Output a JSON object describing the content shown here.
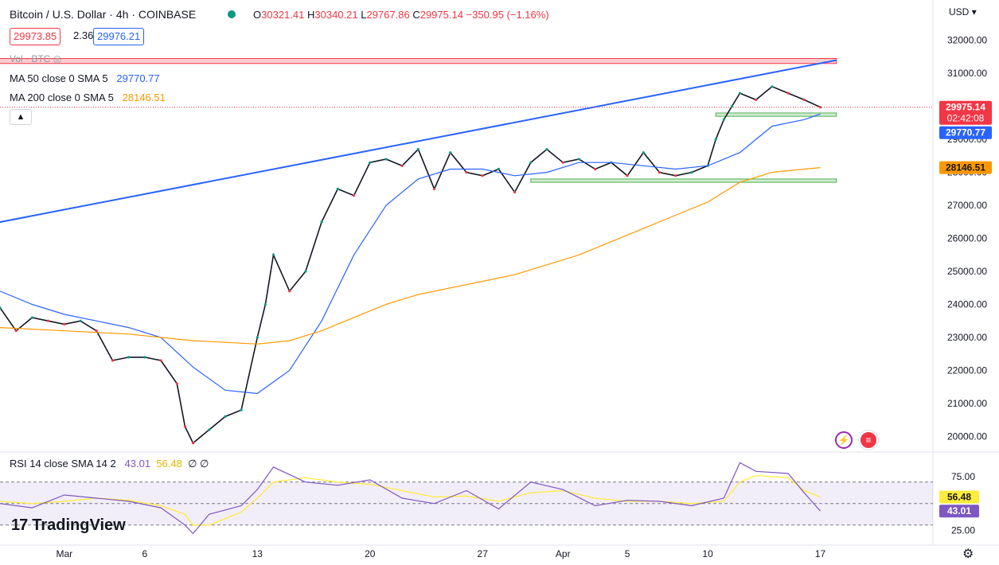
{
  "header": {
    "title": "Bitcoin / U.S. Dollar · 4h · COINBASE",
    "ohlc": {
      "o_label": "O",
      "o": "30321.41",
      "h_label": "H",
      "h": "30340.21",
      "l_label": "L",
      "l": "29767.86",
      "c_label": "C",
      "c": "29975.14",
      "change": "−350.95 (−1.16%)"
    },
    "bid": "29973.85",
    "spread": "2.36",
    "ask": "29976.21",
    "currency": "USD"
  },
  "indicators": {
    "vol": "Vol · BTC",
    "ma50_label": "MA 50 close 0 SMA 5",
    "ma50_value": "29770.77",
    "ma200_label": "MA 200 close 0 SMA 5",
    "ma200_value": "28146.51",
    "rsi_label": "RSI 14 close SMA 14 2",
    "rsi_value": "43.01",
    "rsi_sma_value": "56.48",
    "rsi_extra": "∅ ∅"
  },
  "price_tags": {
    "last": "29975.14",
    "countdown": "02:42:08",
    "ma50": "29770.77",
    "ma200": "28146.51"
  },
  "chart_data": {
    "type": "line",
    "title": "Bitcoin / U.S. Dollar · 4h · COINBASE",
    "y_ticks": [
      20000,
      21000,
      22000,
      23000,
      24000,
      25000,
      26000,
      27000,
      28000,
      29000,
      30000,
      31000,
      32000
    ],
    "y_tick_labels": [
      "20000.00",
      "21000.00",
      "22000.00",
      "23000.00",
      "24000.00",
      "25000.00",
      "26000.00",
      "27000.00",
      "28000.00",
      "29000.00",
      "30000.00",
      "31000.00",
      "32000.00"
    ],
    "ylim": [
      19600,
      32500
    ],
    "x_tick_labels": [
      "Mar",
      "6",
      "13",
      "20",
      "27",
      "Apr",
      "5",
      "10",
      "17"
    ],
    "x_tick_t": [
      5,
      10,
      17,
      24,
      31,
      36,
      40,
      45,
      52
    ],
    "xlim": [
      1,
      59
    ],
    "series": [
      {
        "name": "BTCUSD",
        "color": "#131722",
        "t": [
          1,
          2,
          3,
          4,
          5,
          6,
          7,
          8,
          9,
          10,
          11,
          12,
          12.5,
          13,
          14,
          15,
          16,
          17,
          17.5,
          18,
          19,
          20,
          21,
          22,
          23,
          24,
          25,
          26,
          27,
          28,
          29,
          30,
          31,
          32,
          33,
          34,
          35,
          36,
          37,
          38,
          39,
          40,
          41,
          42,
          43,
          44,
          45,
          45.5,
          46,
          46.5,
          47,
          48,
          49,
          50,
          51,
          52
        ],
        "values": [
          23900,
          23200,
          23600,
          23500,
          23400,
          23500,
          23200,
          22300,
          22400,
          22400,
          22300,
          21600,
          20300,
          19800,
          20200,
          20600,
          20800,
          23000,
          24000,
          25500,
          24400,
          25000,
          26500,
          27500,
          27300,
          28300,
          28400,
          28200,
          28700,
          27500,
          28600,
          28000,
          27900,
          28100,
          27400,
          28300,
          28700,
          28300,
          28400,
          28100,
          28300,
          27900,
          28600,
          28000,
          27900,
          28000,
          28200,
          29000,
          29600,
          30000,
          30400,
          30200,
          30600,
          30400,
          30200,
          29975
        ]
      },
      {
        "name": "MA 50",
        "color": "#2962ff",
        "t": [
          1,
          3,
          5,
          7,
          9,
          11,
          13,
          15,
          17,
          19,
          21,
          23,
          25,
          27,
          29,
          31,
          33,
          35,
          37,
          39,
          41,
          43,
          45,
          47,
          49,
          51,
          52
        ],
        "values": [
          24400,
          24000,
          23700,
          23500,
          23300,
          23000,
          22100,
          21400,
          21300,
          22000,
          23500,
          25500,
          27000,
          27800,
          28100,
          28100,
          27900,
          28000,
          28300,
          28300,
          28200,
          28100,
          28200,
          28600,
          29400,
          29600,
          29770
        ]
      },
      {
        "name": "MA 200",
        "color": "#ff9800",
        "t": [
          1,
          5,
          9,
          13,
          17,
          19,
          21,
          23,
          25,
          27,
          29,
          31,
          33,
          35,
          37,
          39,
          41,
          43,
          45,
          47,
          49,
          51,
          52
        ],
        "values": [
          23300,
          23200,
          23100,
          22900,
          22800,
          22900,
          23200,
          23600,
          24000,
          24300,
          24500,
          24700,
          24900,
          25200,
          25500,
          25900,
          26300,
          26700,
          27100,
          27700,
          28000,
          28100,
          28146
        ]
      }
    ],
    "trendline": {
      "t": [
        0,
        53
      ],
      "values": [
        26400,
        31400
      ],
      "color": "#2962ff"
    },
    "zones": [
      {
        "label": "resistance",
        "t": [
          0,
          53
        ],
        "values": [
          31300,
          31450
        ],
        "color": "#f23645"
      },
      {
        "label": "support-1",
        "t": [
          45.5,
          53
        ],
        "values": [
          29700,
          29800
        ],
        "color": "#4caf50"
      },
      {
        "label": "support-2",
        "t": [
          34,
          53
        ],
        "values": [
          27700,
          27800
        ],
        "color": "#4caf50"
      }
    ],
    "rsi": {
      "ticks": [
        25,
        75
      ],
      "tick_labels": [
        "25.00",
        "75.00"
      ],
      "ylim": [
        15,
        95
      ],
      "band": [
        30,
        70
      ],
      "t": [
        1,
        3,
        5,
        7,
        9,
        11,
        12.5,
        13,
        14,
        16,
        17,
        18,
        20,
        22,
        24,
        26,
        28,
        30,
        32,
        34,
        36,
        38,
        40,
        42,
        44,
        46,
        47,
        48,
        50,
        51,
        52
      ],
      "values": [
        50,
        46,
        58,
        55,
        52,
        46,
        30,
        22,
        40,
        48,
        63,
        84,
        70,
        67,
        72,
        55,
        50,
        62,
        45,
        70,
        63,
        48,
        53,
        52,
        48,
        55,
        88,
        80,
        78,
        60,
        43
      ],
      "sma_values": [
        52,
        50,
        52,
        55,
        53,
        48,
        40,
        30,
        30,
        42,
        55,
        70,
        74,
        70,
        68,
        62,
        56,
        57,
        52,
        60,
        62,
        55,
        52,
        52,
        50,
        52,
        70,
        76,
        74,
        62,
        56
      ],
      "color": "#7e57c2",
      "sma_color": "#ffeb3b"
    }
  },
  "branding": {
    "logo": "TradingView",
    "logo_mark": "17"
  }
}
